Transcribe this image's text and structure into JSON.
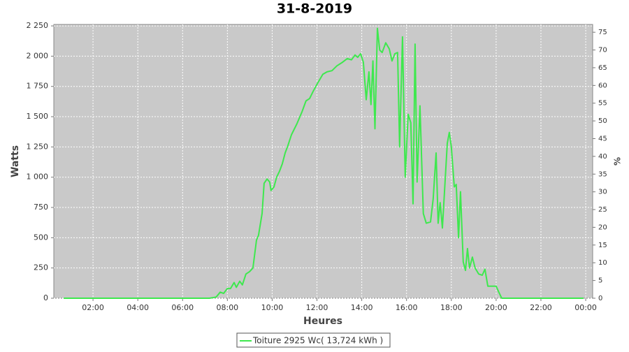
{
  "chart_data": {
    "type": "line",
    "title": "31-8-2019",
    "x_label": "Heures",
    "y_label": "Watts",
    "y2_label": "%",
    "x": [
      0.69,
      6.9,
      7.2,
      7.5,
      7.68,
      7.83,
      8.0,
      8.14,
      8.3,
      8.4,
      8.55,
      8.67,
      8.83,
      8.99,
      9.14,
      9.3,
      9.39,
      9.55,
      9.64,
      9.77,
      9.89,
      9.95,
      10.08,
      10.2,
      10.33,
      10.45,
      10.58,
      10.7,
      10.86,
      11.1,
      11.33,
      11.51,
      11.67,
      11.83,
      12.04,
      12.26,
      12.45,
      12.67,
      12.89,
      13.14,
      13.35,
      13.54,
      13.7,
      13.82,
      13.95,
      14.07,
      14.2,
      14.32,
      14.41,
      14.5,
      14.59,
      14.7,
      14.8,
      14.91,
      15.07,
      15.23,
      15.35,
      15.48,
      15.6,
      15.69,
      15.82,
      15.94,
      16.07,
      16.19,
      16.29,
      16.38,
      16.47,
      16.6,
      16.75,
      16.88,
      17.07,
      17.19,
      17.32,
      17.41,
      17.5,
      17.6,
      17.72,
      17.82,
      17.91,
      18.0,
      18.13,
      18.22,
      18.32,
      18.41,
      18.53,
      18.63,
      18.72,
      18.81,
      18.94,
      19.06,
      19.22,
      19.38,
      19.5,
      19.63,
      19.84,
      20.0,
      20.12,
      20.25,
      23.9
    ],
    "series": [
      {
        "name": "Toiture 2925 Wc( 13,724 kWh )",
        "color": "#3ee84e",
        "values": [
          0,
          0,
          0,
          10,
          50,
          40,
          80,
          80,
          130,
          90,
          140,
          110,
          200,
          220,
          250,
          480,
          520,
          700,
          950,
          985,
          960,
          890,
          920,
          1000,
          1050,
          1110,
          1200,
          1260,
          1350,
          1440,
          1540,
          1630,
          1650,
          1710,
          1780,
          1850,
          1870,
          1880,
          1920,
          1950,
          1980,
          1970,
          2010,
          1990,
          2020,
          1950,
          1640,
          1870,
          1600,
          1960,
          1400,
          2230,
          2050,
          2030,
          2110,
          2060,
          1960,
          2020,
          2030,
          1250,
          2160,
          1000,
          1520,
          1450,
          780,
          2100,
          960,
          1590,
          700,
          620,
          630,
          820,
          1200,
          620,
          790,
          580,
          960,
          1280,
          1370,
          1250,
          920,
          940,
          500,
          880,
          300,
          230,
          410,
          250,
          340,
          250,
          200,
          190,
          240,
          100,
          100,
          100,
          50,
          0,
          0
        ]
      }
    ],
    "xlim": [
      0.25,
      24.31
    ],
    "xticks": [
      {
        "value": 2,
        "label": "02:00"
      },
      {
        "value": 4,
        "label": "04:00"
      },
      {
        "value": 6,
        "label": "06:00"
      },
      {
        "value": 8,
        "label": "08:00"
      },
      {
        "value": 10,
        "label": "10:00"
      },
      {
        "value": 12,
        "label": "12:00"
      },
      {
        "value": 14,
        "label": "14:00"
      },
      {
        "value": 16,
        "label": "16:00"
      },
      {
        "value": 18,
        "label": "18:00"
      },
      {
        "value": 20,
        "label": "20:00"
      },
      {
        "value": 22,
        "label": "22:00"
      },
      {
        "value": 24,
        "label": "00:00"
      }
    ],
    "ylim": [
      0,
      2262
    ],
    "yticks": [
      0,
      250,
      500,
      750,
      {
        "value": 1000,
        "label": "1 000"
      },
      {
        "value": 1250,
        "label": "1 250"
      },
      {
        "value": 1500,
        "label": "1 500"
      },
      {
        "value": 1750,
        "label": "1 750"
      },
      {
        "value": 2000,
        "label": "2 000"
      },
      {
        "value": 2250,
        "label": "2 250"
      }
    ],
    "y2lim": [
      0,
      77.2
    ],
    "y2ticks": [
      0,
      5,
      10,
      15,
      20,
      25,
      30,
      35,
      40,
      45,
      50,
      55,
      60,
      65,
      70,
      75
    ],
    "grid": true
  }
}
